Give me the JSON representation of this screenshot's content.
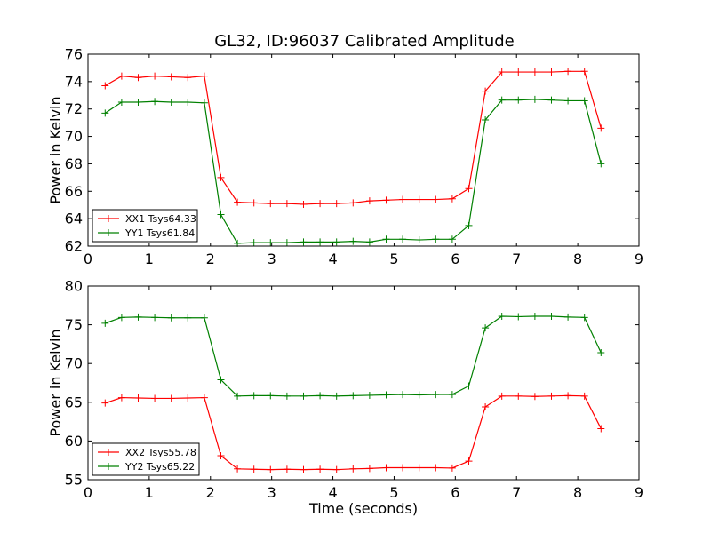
{
  "chart_data": [
    {
      "type": "line",
      "title": "GL32, ID:96037 Calibrated Amplitude",
      "xlabel": "",
      "ylabel": "Power in Kelvin",
      "xlim": [
        0,
        9
      ],
      "ylim": [
        62,
        76
      ],
      "xticks": [
        "0",
        "1",
        "2",
        "3",
        "4",
        "5",
        "6",
        "7",
        "8",
        "9"
      ],
      "yticks": [
        "62",
        "64",
        "66",
        "68",
        "70",
        "72",
        "74",
        "76"
      ],
      "grid": false,
      "legend": "lower-left",
      "x": [
        0.28,
        0.55,
        0.82,
        1.09,
        1.36,
        1.63,
        1.9,
        2.17,
        2.44,
        2.71,
        2.98,
        3.25,
        3.52,
        3.79,
        4.06,
        4.33,
        4.6,
        4.87,
        5.14,
        5.41,
        5.68,
        5.95,
        6.22,
        6.49,
        6.76,
        7.03,
        7.3,
        7.57,
        7.84,
        8.11,
        8.38
      ],
      "series": [
        {
          "name": "XX1 Tsys64.33",
          "color": "#ff0000",
          "values": [
            73.7,
            74.4,
            74.3,
            74.4,
            74.35,
            74.3,
            74.4,
            67.0,
            65.2,
            65.15,
            65.1,
            65.1,
            65.05,
            65.1,
            65.1,
            65.15,
            65.3,
            65.35,
            65.4,
            65.4,
            65.4,
            65.45,
            66.2,
            73.3,
            74.7,
            74.7,
            74.7,
            74.7,
            74.75,
            74.75,
            70.6
          ]
        },
        {
          "name": "YY1 Tsys61.84",
          "color": "#008000",
          "values": [
            71.7,
            72.5,
            72.5,
            72.55,
            72.5,
            72.5,
            72.45,
            64.3,
            62.2,
            62.25,
            62.25,
            62.25,
            62.3,
            62.3,
            62.3,
            62.35,
            62.3,
            62.5,
            62.5,
            62.45,
            62.5,
            62.5,
            63.5,
            71.2,
            72.65,
            72.65,
            72.7,
            72.65,
            72.6,
            72.6,
            68.0
          ]
        }
      ]
    },
    {
      "type": "line",
      "title": "",
      "xlabel": "Time (seconds)",
      "ylabel": "Power in Kelvin",
      "xlim": [
        0,
        9
      ],
      "ylim": [
        55,
        80
      ],
      "xticks": [
        "0",
        "1",
        "2",
        "3",
        "4",
        "5",
        "6",
        "7",
        "8",
        "9"
      ],
      "yticks": [
        "55",
        "60",
        "65",
        "70",
        "75",
        "80"
      ],
      "grid": false,
      "legend": "lower-left",
      "x": [
        0.28,
        0.55,
        0.82,
        1.09,
        1.36,
        1.63,
        1.9,
        2.17,
        2.44,
        2.71,
        2.98,
        3.25,
        3.52,
        3.79,
        4.06,
        4.33,
        4.6,
        4.87,
        5.14,
        5.41,
        5.68,
        5.95,
        6.22,
        6.49,
        6.76,
        7.03,
        7.3,
        7.57,
        7.84,
        8.11,
        8.38
      ],
      "series": [
        {
          "name": "XX2 Tsys55.78",
          "color": "#ff0000",
          "values": [
            64.9,
            65.6,
            65.55,
            65.5,
            65.5,
            65.55,
            65.6,
            58.1,
            56.4,
            56.35,
            56.3,
            56.35,
            56.3,
            56.35,
            56.3,
            56.4,
            56.45,
            56.55,
            56.55,
            56.55,
            56.55,
            56.5,
            57.4,
            64.4,
            65.8,
            65.8,
            65.75,
            65.8,
            65.85,
            65.8,
            61.6
          ]
        },
        {
          "name": "YY2 Tsys65.22",
          "color": "#008000",
          "values": [
            75.2,
            75.95,
            76.0,
            75.95,
            75.9,
            75.9,
            75.9,
            67.9,
            65.8,
            65.85,
            65.85,
            65.8,
            65.8,
            65.85,
            65.8,
            65.85,
            65.9,
            65.95,
            66.0,
            65.95,
            66.0,
            66.0,
            67.1,
            74.6,
            76.1,
            76.05,
            76.1,
            76.1,
            76.0,
            75.95,
            71.4
          ]
        }
      ]
    }
  ]
}
